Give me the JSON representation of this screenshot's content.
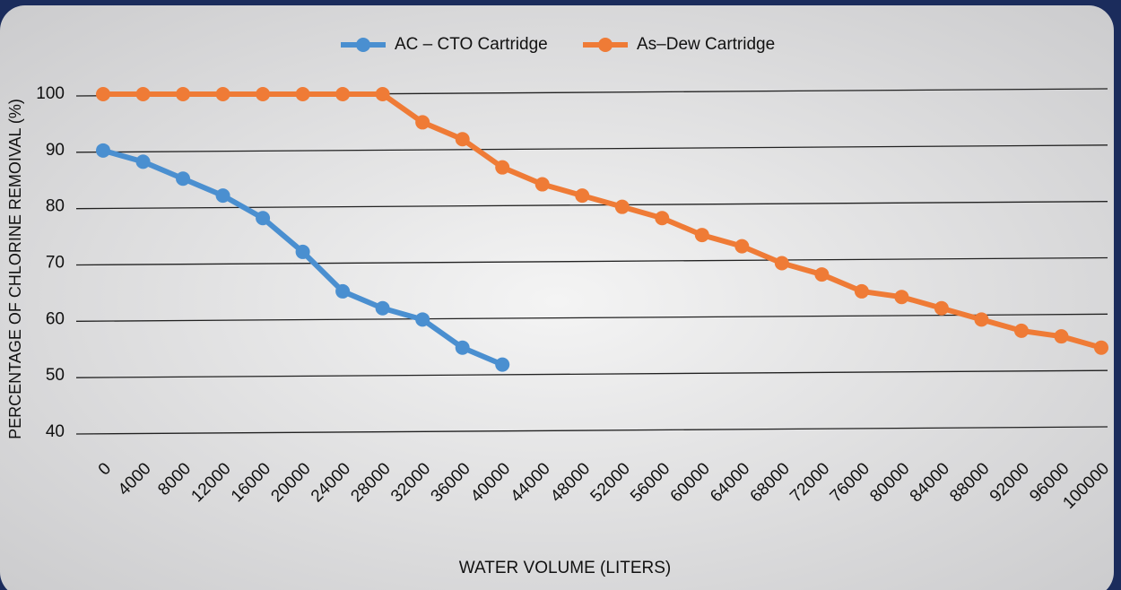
{
  "chart_data": {
    "type": "line",
    "x_label": "WATER VOLUME (LITERS)",
    "y_label": "PERCENTAGE OF CHLORINE REMOIVAL (%)",
    "categories": [
      "0",
      "4000",
      "8000",
      "12000",
      "16000",
      "20000",
      "24000",
      "28000",
      "32000",
      "36000",
      "40000",
      "44000",
      "48000",
      "52000",
      "56000",
      "60000",
      "64000",
      "68000",
      "72000",
      "76000",
      "80000",
      "84000",
      "88000",
      "92000",
      "96000",
      "100000"
    ],
    "series": [
      {
        "name": "AC – CTO Cartridge",
        "color": "#4a8fd0",
        "values": [
          90,
          88,
          85,
          82,
          78,
          72,
          65,
          62,
          60,
          55,
          52,
          null,
          null,
          null,
          null,
          null,
          null,
          null,
          null,
          null,
          null,
          null,
          null,
          null,
          null,
          null
        ]
      },
      {
        "name": "As–Dew Cartridge",
        "color": "#ef7b36",
        "values": [
          100,
          100,
          100,
          100,
          100,
          100,
          100,
          100,
          95,
          92,
          87,
          84,
          82,
          80,
          78,
          75,
          73,
          70,
          68,
          65,
          64,
          62,
          60,
          58,
          57,
          55
        ]
      }
    ],
    "ylim": [
      40,
      100
    ],
    "yticks": [
      40,
      50,
      60,
      70,
      80,
      90,
      100
    ],
    "grid": true,
    "legend": "top"
  }
}
